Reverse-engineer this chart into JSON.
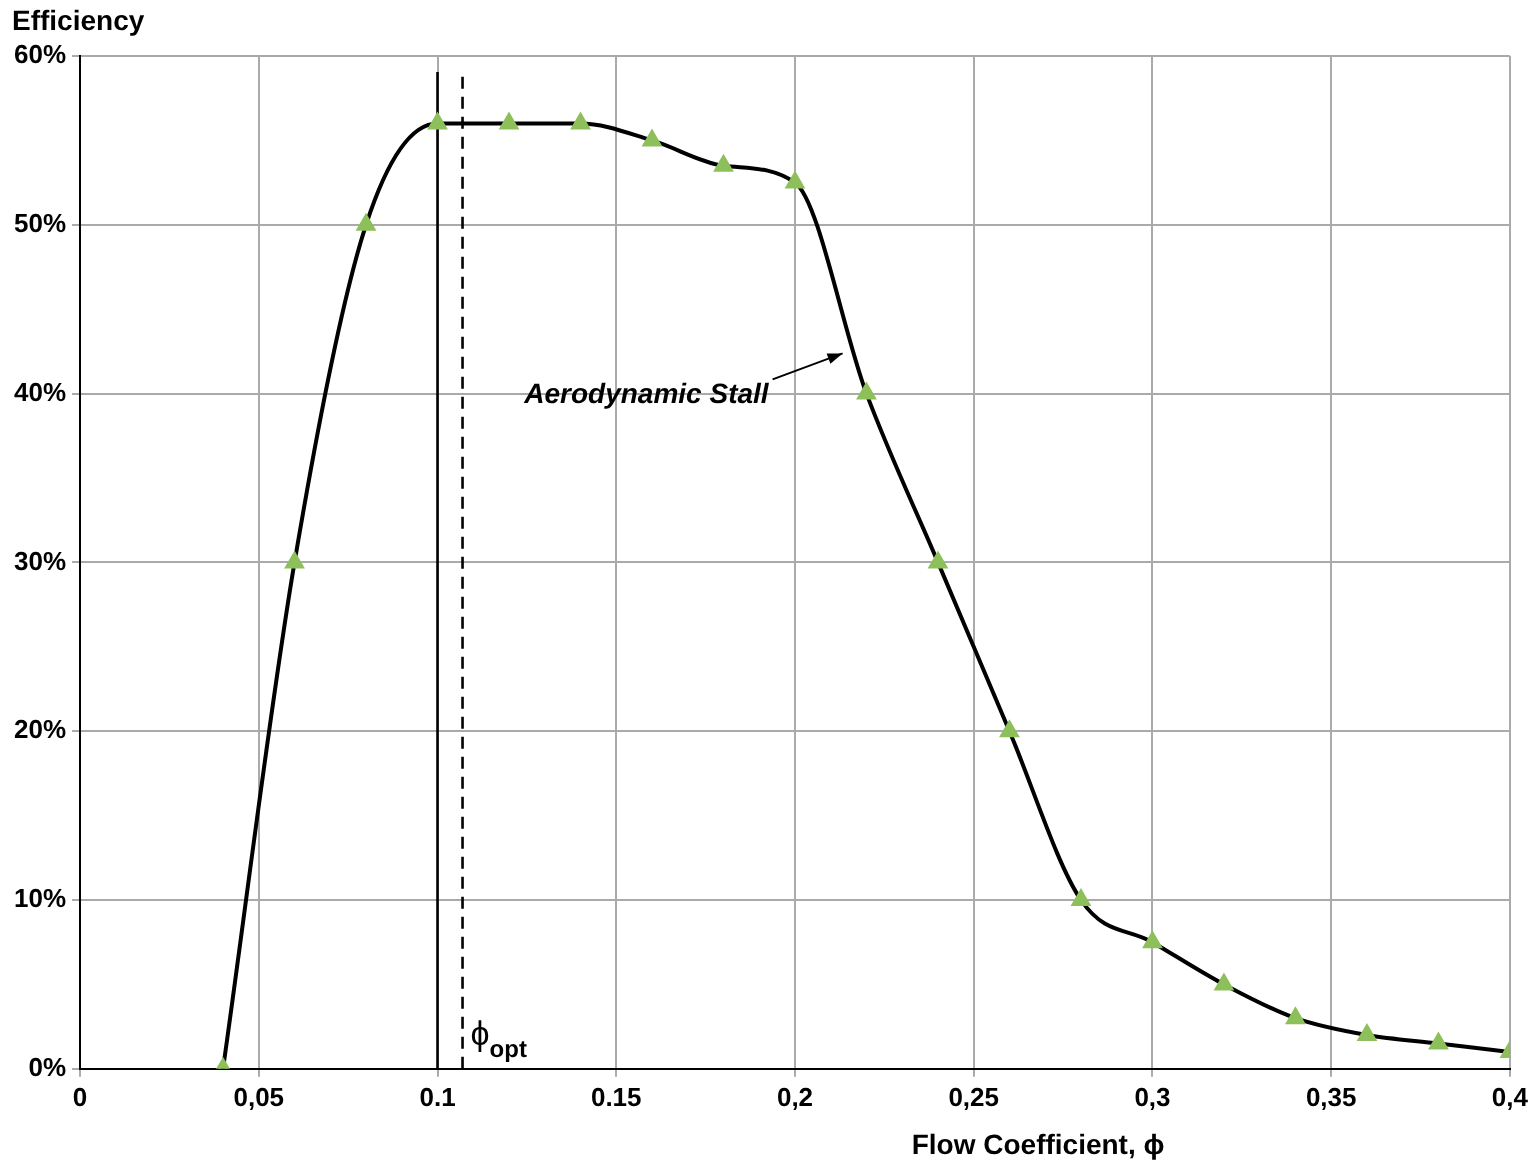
{
  "chart_data": {
    "type": "line",
    "ylabel": "Efficiency",
    "xlabel": "Flow Coefficient, ϕ",
    "x": [
      0.04,
      0.06,
      0.08,
      0.1,
      0.12,
      0.14,
      0.16,
      0.18,
      0.2,
      0.22,
      0.24,
      0.26,
      0.28,
      0.3,
      0.32,
      0.34,
      0.36,
      0.38,
      0.4
    ],
    "series": [
      {
        "color": "#000000",
        "colors": [
          "#8dc05a",
          "#8dc05a",
          "#8dc05a",
          "#8dc05a",
          "#8dc05a",
          "#8dc05a",
          "#8dc05a",
          "#8dc05a",
          "#8dc05a",
          "#8dc05a",
          "#8dc05a",
          "#8dc05a",
          "#8dc05a",
          "#8dc05a",
          "#8dc05a",
          "#8dc05a",
          "#8dc05a",
          "#8dc05a",
          "#8dc05a"
        ],
        "values": [
          0,
          30,
          50,
          56,
          56,
          56,
          55,
          53.5,
          52.5,
          40,
          30,
          20,
          10,
          7.5,
          5,
          3,
          2,
          1.5,
          1
        ]
      }
    ],
    "xlim": [
      0,
      0.4
    ],
    "xticks": [
      0,
      {
        "value": 0.05,
        "label": "0,05"
      },
      0.1,
      0.15,
      {
        "value": 0.2,
        "label": "0,2"
      },
      {
        "value": 0.25,
        "label": "0,25"
      },
      {
        "value": 0.3,
        "label": "0,3"
      },
      {
        "value": 0.35,
        "label": "0,35"
      },
      {
        "value": 0.4,
        "label": "0,4"
      }
    ],
    "ylim": [
      0,
      60
    ],
    "yticks": [
      {
        "value": 0,
        "label": "0%"
      },
      {
        "value": 10,
        "label": "10%"
      },
      {
        "value": 20,
        "label": "20%"
      },
      {
        "value": 30,
        "label": "30%"
      },
      {
        "value": 40,
        "label": "40%"
      },
      {
        "value": 50,
        "label": "50%"
      },
      {
        "value": 60,
        "label": "60%"
      }
    ],
    "grid": true,
    "legend": false,
    "marker": "triangle",
    "line_style": "solid",
    "ref_lines": [
      {
        "axis": "x",
        "value": 0.1,
        "color": "#000000",
        "line_style": "solid"
      },
      {
        "axis": "x",
        "value": 0.107,
        "label": "ϕ$_{opt}$",
        "color": "#000000",
        "line_style": "dashed"
      }
    ],
    "annotations": [
      {
        "text": "Aerodynamic Stall",
        "x": 0.215,
        "y": 42.5
      }
    ]
  }
}
